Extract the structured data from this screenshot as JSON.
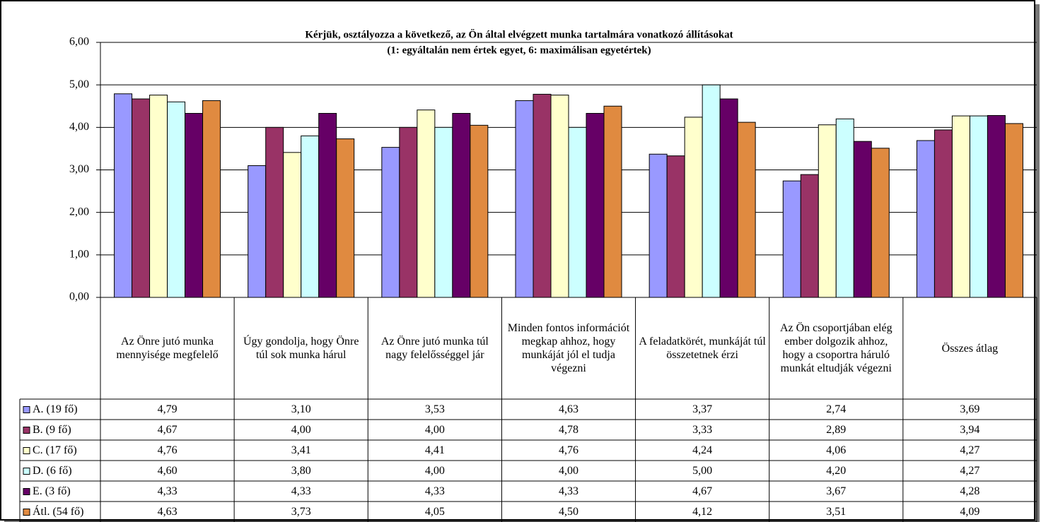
{
  "chart_data": {
    "type": "bar",
    "title": "Kérjük, osztályozza a következő, az Ön által elvégzett munka tartalmára  vonatkozó állításokat",
    "subtitle": "(1: egyáltalán nem értek egyet, 6: maximálisan  egyetértek)",
    "categories": [
      "Az Önre jutó munka mennyisége megfelelő",
      "Úgy gondolja, hogy Önre túl sok munka hárul",
      "Az Önre jutó munka túl nagy felelősséggel jár",
      "Minden fontos információt megkap ahhoz, hogy munkáját jól el tudja végezni",
      "A feladatkörét, munkáját túl összetetnek érzi",
      "Az Ön csoportjában elég ember dolgozik ahhoz, hogy a csoportra háruló munkát eltudják végezni",
      "Összes átlag"
    ],
    "series": [
      {
        "name": "A. (19 fő)",
        "color": "#9999ff",
        "values": [
          4.79,
          3.1,
          3.53,
          4.63,
          3.37,
          2.74,
          3.69
        ],
        "value_labels": [
          "4,79",
          "3,10",
          "3,53",
          "4,63",
          "3,37",
          "2,74",
          "3,69"
        ]
      },
      {
        "name": "B. (9 fő)",
        "color": "#993366",
        "values": [
          4.67,
          4.0,
          4.0,
          4.78,
          3.33,
          2.89,
          3.94
        ],
        "value_labels": [
          "4,67",
          "4,00",
          "4,00",
          "4,78",
          "3,33",
          "2,89",
          "3,94"
        ]
      },
      {
        "name": "C. (17 fő)",
        "color": "#ffffcc",
        "values": [
          4.76,
          3.41,
          4.41,
          4.76,
          4.24,
          4.06,
          4.27
        ],
        "value_labels": [
          "4,76",
          "3,41",
          "4,41",
          "4,76",
          "4,24",
          "4,06",
          "4,27"
        ]
      },
      {
        "name": "D. (6 fő)",
        "color": "#ccffff",
        "values": [
          4.6,
          3.8,
          4.0,
          4.0,
          5.0,
          4.2,
          4.27
        ],
        "value_labels": [
          "4,60",
          "3,80",
          "4,00",
          "4,00",
          "5,00",
          "4,20",
          "4,27"
        ]
      },
      {
        "name": "E. (3 fő)",
        "color": "#660066",
        "values": [
          4.33,
          4.33,
          4.33,
          4.33,
          4.67,
          3.67,
          4.28
        ],
        "value_labels": [
          "4,33",
          "4,33",
          "4,33",
          "4,33",
          "4,67",
          "3,67",
          "4,28"
        ]
      },
      {
        "name": "Átl. (54 fő)",
        "color": "#e08a40",
        "values": [
          4.63,
          3.73,
          4.05,
          4.5,
          4.12,
          3.51,
          4.09
        ],
        "value_labels": [
          "4,63",
          "3,73",
          "4,05",
          "4,50",
          "4,12",
          "3,51",
          "4,09"
        ]
      }
    ],
    "ylim": [
      0,
      6
    ],
    "yticks": [
      {
        "value": 0,
        "label": "0,00"
      },
      {
        "value": 1,
        "label": "1,00"
      },
      {
        "value": 2,
        "label": "2,00"
      },
      {
        "value": 3,
        "label": "3,00"
      },
      {
        "value": 4,
        "label": "4,00"
      },
      {
        "value": 5,
        "label": "5,00"
      },
      {
        "value": 6,
        "label": "6,00"
      }
    ],
    "grid": true
  }
}
